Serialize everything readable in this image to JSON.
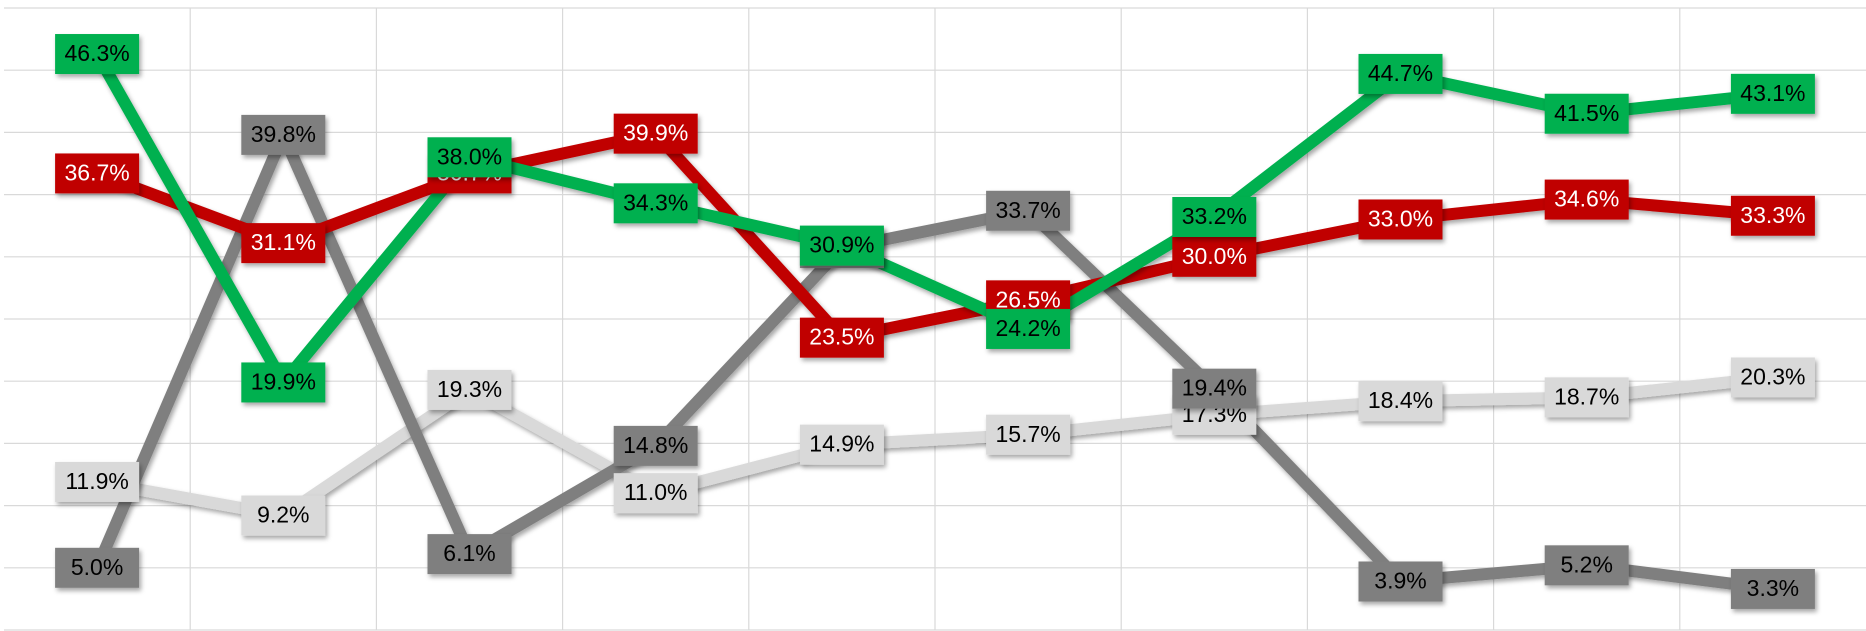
{
  "chart_data": {
    "type": "line",
    "categories": [
      null,
      null,
      null,
      null,
      null,
      null,
      null,
      null,
      null,
      null
    ],
    "series": [
      {
        "name": "Light gray",
        "color": "#d9d9d9",
        "values": [
          11.9,
          9.2,
          19.3,
          11.0,
          14.9,
          15.7,
          17.3,
          18.4,
          18.7,
          20.3
        ],
        "value_labels": [
          "11.9%",
          "9.2%",
          "19.3%",
          "11.0%",
          "14.9%",
          "15.7%",
          "17.3%",
          "18.4%",
          "18.7%",
          "20.3%"
        ]
      },
      {
        "name": "Dark gray",
        "color": "#7f7f7f",
        "values": [
          5.0,
          39.8,
          6.1,
          14.8,
          30.7,
          33.7,
          19.4,
          3.9,
          5.2,
          3.3
        ],
        "value_labels": [
          "5.0%",
          "39.8%",
          "6.1%",
          "14.8%",
          "30.7%",
          "33.7%",
          "19.4%",
          "3.9%",
          "5.2%",
          "3.3%"
        ]
      },
      {
        "name": "Red",
        "color": "#c00000",
        "values": [
          36.7,
          31.1,
          36.7,
          39.9,
          23.5,
          26.5,
          30.0,
          33.0,
          34.6,
          33.3
        ],
        "value_labels": [
          "36.7%",
          "31.1%",
          "36.7%",
          "39.9%",
          "23.5%",
          "26.5%",
          "30.0%",
          "33.0%",
          "34.6%",
          "33.3%"
        ]
      },
      {
        "name": "Green",
        "color": "#00b050",
        "values": [
          46.3,
          19.9,
          38.0,
          34.3,
          30.9,
          24.2,
          33.2,
          44.7,
          41.5,
          43.1
        ],
        "value_labels": [
          "46.3%",
          "19.9%",
          "38.0%",
          "34.3%",
          "30.9%",
          "24.2%",
          "33.2%",
          "44.7%",
          "41.5%",
          "43.1%"
        ]
      }
    ],
    "ylim": [
      0,
      50
    ],
    "yticks": [
      0,
      5,
      10,
      15,
      20,
      25,
      30,
      35,
      40,
      45,
      50
    ],
    "grid": true
  }
}
